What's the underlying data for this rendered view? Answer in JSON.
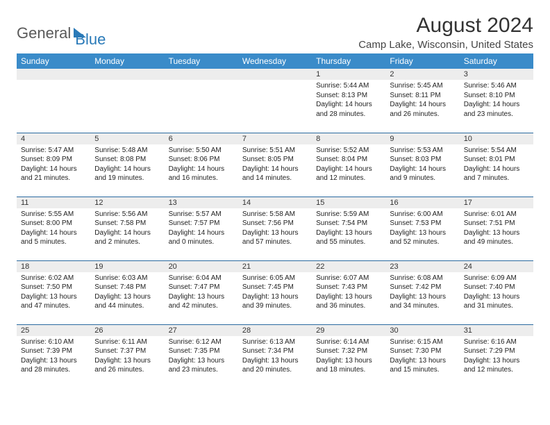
{
  "logo": {
    "text1": "General",
    "text2": "Blue"
  },
  "title": "August 2024",
  "location": "Camp Lake, Wisconsin, United States",
  "colors": {
    "header_bg": "#3a8bc9",
    "header_text": "#ffffff",
    "row_divider": "#2a6aa0",
    "daynum_bg": "#ededed",
    "logo_blue": "#2a7ab8",
    "logo_gray": "#5a5a5a"
  },
  "weekdays": [
    "Sunday",
    "Monday",
    "Tuesday",
    "Wednesday",
    "Thursday",
    "Friday",
    "Saturday"
  ],
  "weeks": [
    [
      {
        "empty": true
      },
      {
        "empty": true
      },
      {
        "empty": true
      },
      {
        "empty": true
      },
      {
        "num": "1",
        "sunrise": "Sunrise: 5:44 AM",
        "sunset": "Sunset: 8:13 PM",
        "daylight": "Daylight: 14 hours and 28 minutes."
      },
      {
        "num": "2",
        "sunrise": "Sunrise: 5:45 AM",
        "sunset": "Sunset: 8:11 PM",
        "daylight": "Daylight: 14 hours and 26 minutes."
      },
      {
        "num": "3",
        "sunrise": "Sunrise: 5:46 AM",
        "sunset": "Sunset: 8:10 PM",
        "daylight": "Daylight: 14 hours and 23 minutes."
      }
    ],
    [
      {
        "num": "4",
        "sunrise": "Sunrise: 5:47 AM",
        "sunset": "Sunset: 8:09 PM",
        "daylight": "Daylight: 14 hours and 21 minutes."
      },
      {
        "num": "5",
        "sunrise": "Sunrise: 5:48 AM",
        "sunset": "Sunset: 8:08 PM",
        "daylight": "Daylight: 14 hours and 19 minutes."
      },
      {
        "num": "6",
        "sunrise": "Sunrise: 5:50 AM",
        "sunset": "Sunset: 8:06 PM",
        "daylight": "Daylight: 14 hours and 16 minutes."
      },
      {
        "num": "7",
        "sunrise": "Sunrise: 5:51 AM",
        "sunset": "Sunset: 8:05 PM",
        "daylight": "Daylight: 14 hours and 14 minutes."
      },
      {
        "num": "8",
        "sunrise": "Sunrise: 5:52 AM",
        "sunset": "Sunset: 8:04 PM",
        "daylight": "Daylight: 14 hours and 12 minutes."
      },
      {
        "num": "9",
        "sunrise": "Sunrise: 5:53 AM",
        "sunset": "Sunset: 8:03 PM",
        "daylight": "Daylight: 14 hours and 9 minutes."
      },
      {
        "num": "10",
        "sunrise": "Sunrise: 5:54 AM",
        "sunset": "Sunset: 8:01 PM",
        "daylight": "Daylight: 14 hours and 7 minutes."
      }
    ],
    [
      {
        "num": "11",
        "sunrise": "Sunrise: 5:55 AM",
        "sunset": "Sunset: 8:00 PM",
        "daylight": "Daylight: 14 hours and 5 minutes."
      },
      {
        "num": "12",
        "sunrise": "Sunrise: 5:56 AM",
        "sunset": "Sunset: 7:58 PM",
        "daylight": "Daylight: 14 hours and 2 minutes."
      },
      {
        "num": "13",
        "sunrise": "Sunrise: 5:57 AM",
        "sunset": "Sunset: 7:57 PM",
        "daylight": "Daylight: 14 hours and 0 minutes."
      },
      {
        "num": "14",
        "sunrise": "Sunrise: 5:58 AM",
        "sunset": "Sunset: 7:56 PM",
        "daylight": "Daylight: 13 hours and 57 minutes."
      },
      {
        "num": "15",
        "sunrise": "Sunrise: 5:59 AM",
        "sunset": "Sunset: 7:54 PM",
        "daylight": "Daylight: 13 hours and 55 minutes."
      },
      {
        "num": "16",
        "sunrise": "Sunrise: 6:00 AM",
        "sunset": "Sunset: 7:53 PM",
        "daylight": "Daylight: 13 hours and 52 minutes."
      },
      {
        "num": "17",
        "sunrise": "Sunrise: 6:01 AM",
        "sunset": "Sunset: 7:51 PM",
        "daylight": "Daylight: 13 hours and 49 minutes."
      }
    ],
    [
      {
        "num": "18",
        "sunrise": "Sunrise: 6:02 AM",
        "sunset": "Sunset: 7:50 PM",
        "daylight": "Daylight: 13 hours and 47 minutes."
      },
      {
        "num": "19",
        "sunrise": "Sunrise: 6:03 AM",
        "sunset": "Sunset: 7:48 PM",
        "daylight": "Daylight: 13 hours and 44 minutes."
      },
      {
        "num": "20",
        "sunrise": "Sunrise: 6:04 AM",
        "sunset": "Sunset: 7:47 PM",
        "daylight": "Daylight: 13 hours and 42 minutes."
      },
      {
        "num": "21",
        "sunrise": "Sunrise: 6:05 AM",
        "sunset": "Sunset: 7:45 PM",
        "daylight": "Daylight: 13 hours and 39 minutes."
      },
      {
        "num": "22",
        "sunrise": "Sunrise: 6:07 AM",
        "sunset": "Sunset: 7:43 PM",
        "daylight": "Daylight: 13 hours and 36 minutes."
      },
      {
        "num": "23",
        "sunrise": "Sunrise: 6:08 AM",
        "sunset": "Sunset: 7:42 PM",
        "daylight": "Daylight: 13 hours and 34 minutes."
      },
      {
        "num": "24",
        "sunrise": "Sunrise: 6:09 AM",
        "sunset": "Sunset: 7:40 PM",
        "daylight": "Daylight: 13 hours and 31 minutes."
      }
    ],
    [
      {
        "num": "25",
        "sunrise": "Sunrise: 6:10 AM",
        "sunset": "Sunset: 7:39 PM",
        "daylight": "Daylight: 13 hours and 28 minutes."
      },
      {
        "num": "26",
        "sunrise": "Sunrise: 6:11 AM",
        "sunset": "Sunset: 7:37 PM",
        "daylight": "Daylight: 13 hours and 26 minutes."
      },
      {
        "num": "27",
        "sunrise": "Sunrise: 6:12 AM",
        "sunset": "Sunset: 7:35 PM",
        "daylight": "Daylight: 13 hours and 23 minutes."
      },
      {
        "num": "28",
        "sunrise": "Sunrise: 6:13 AM",
        "sunset": "Sunset: 7:34 PM",
        "daylight": "Daylight: 13 hours and 20 minutes."
      },
      {
        "num": "29",
        "sunrise": "Sunrise: 6:14 AM",
        "sunset": "Sunset: 7:32 PM",
        "daylight": "Daylight: 13 hours and 18 minutes."
      },
      {
        "num": "30",
        "sunrise": "Sunrise: 6:15 AM",
        "sunset": "Sunset: 7:30 PM",
        "daylight": "Daylight: 13 hours and 15 minutes."
      },
      {
        "num": "31",
        "sunrise": "Sunrise: 6:16 AM",
        "sunset": "Sunset: 7:29 PM",
        "daylight": "Daylight: 13 hours and 12 minutes."
      }
    ]
  ]
}
